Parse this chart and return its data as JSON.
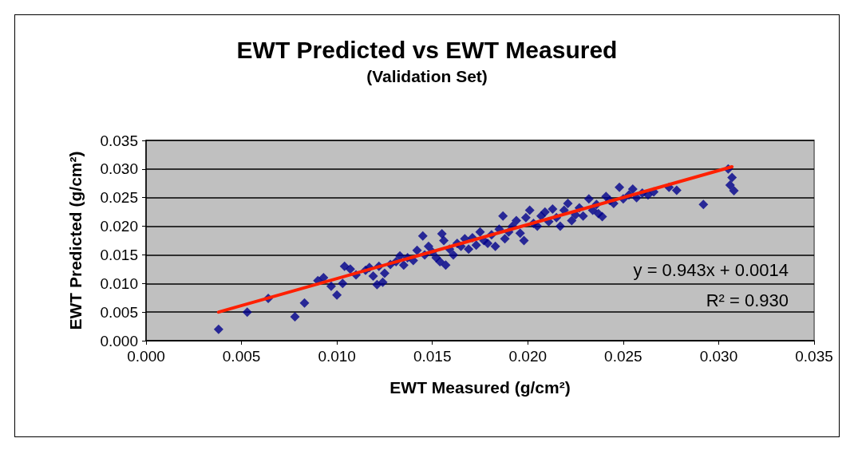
{
  "chart_data": {
    "type": "scatter",
    "title": "EWT Predicted vs EWT Measured",
    "subtitle": "(Validation Set)",
    "xlabel": "EWT Measured (g/cm²)",
    "ylabel": "EWT Predicted (g/cm²)",
    "annotations": [
      "y = 0.943x + 0.0014",
      "R² = 0.930"
    ],
    "xlim": [
      0,
      0.035
    ],
    "ylim": [
      0,
      0.035
    ],
    "xticks": [
      {
        "value": 0,
        "label": "0.000"
      },
      {
        "value": 0.005,
        "label": "0.005"
      },
      {
        "value": 0.01,
        "label": "0.010"
      },
      {
        "value": 0.015,
        "label": "0.015"
      },
      {
        "value": 0.02,
        "label": "0.020"
      },
      {
        "value": 0.025,
        "label": "0.025"
      },
      {
        "value": 0.03,
        "label": "0.030"
      },
      {
        "value": 0.035,
        "label": "0.035"
      }
    ],
    "yticks": [
      {
        "value": 0,
        "label": "0.000"
      },
      {
        "value": 0.005,
        "label": "0.005"
      },
      {
        "value": 0.01,
        "label": "0.010"
      },
      {
        "value": 0.015,
        "label": "0.015"
      },
      {
        "value": 0.02,
        "label": "0.020"
      },
      {
        "value": 0.025,
        "label": "0.025"
      },
      {
        "value": 0.03,
        "label": "0.030"
      },
      {
        "value": 0.035,
        "label": "0.035"
      }
    ],
    "grid": "y",
    "series": [
      {
        "color": "#00008b",
        "marker": "diamond",
        "x": [
          0.0038,
          0.0053,
          0.0064,
          0.0078,
          0.0083,
          0.009,
          0.0093,
          0.0097,
          0.01,
          0.0103,
          0.0104,
          0.0107,
          0.011,
          0.0115,
          0.0117,
          0.0119,
          0.0121,
          0.0122,
          0.0124,
          0.0125,
          0.0128,
          0.0131,
          0.0133,
          0.0135,
          0.0137,
          0.014,
          0.0142,
          0.0145,
          0.0146,
          0.0148,
          0.015,
          0.0152,
          0.0154,
          0.0155,
          0.0156,
          0.0157,
          0.0159,
          0.0161,
          0.0163,
          0.0165,
          0.0167,
          0.0169,
          0.0171,
          0.0173,
          0.0175,
          0.0177,
          0.0179,
          0.0181,
          0.0183,
          0.0185,
          0.0187,
          0.0188,
          0.019,
          0.0192,
          0.0194,
          0.0196,
          0.0198,
          0.0199,
          0.0201,
          0.0203,
          0.0205,
          0.0207,
          0.0209,
          0.0211,
          0.0213,
          0.0215,
          0.0217,
          0.0219,
          0.0221,
          0.0223,
          0.0225,
          0.0227,
          0.0229,
          0.0232,
          0.0234,
          0.0236,
          0.0237,
          0.0239,
          0.0241,
          0.0243,
          0.0245,
          0.0248,
          0.025,
          0.0253,
          0.0255,
          0.0257,
          0.026,
          0.0263,
          0.0266,
          0.0274,
          0.0278,
          0.0292,
          0.0305,
          0.0306,
          0.0307,
          0.0308
        ],
        "values": [
          0.002,
          0.005,
          0.0074,
          0.0042,
          0.0066,
          0.0105,
          0.011,
          0.0095,
          0.008,
          0.01,
          0.013,
          0.0125,
          0.0115,
          0.0123,
          0.0128,
          0.0113,
          0.0098,
          0.013,
          0.0102,
          0.0118,
          0.0133,
          0.0138,
          0.0148,
          0.0132,
          0.0145,
          0.014,
          0.0158,
          0.0183,
          0.015,
          0.0165,
          0.0155,
          0.0145,
          0.0138,
          0.0187,
          0.0175,
          0.0132,
          0.016,
          0.015,
          0.017,
          0.0165,
          0.0178,
          0.016,
          0.018,
          0.0167,
          0.019,
          0.0175,
          0.017,
          0.0185,
          0.0165,
          0.0195,
          0.0218,
          0.0178,
          0.019,
          0.02,
          0.021,
          0.0188,
          0.0175,
          0.0215,
          0.0228,
          0.0205,
          0.02,
          0.0218,
          0.0225,
          0.0208,
          0.023,
          0.0215,
          0.02,
          0.0228,
          0.024,
          0.021,
          0.022,
          0.0232,
          0.0218,
          0.0248,
          0.0228,
          0.0238,
          0.0222,
          0.0217,
          0.0252,
          0.0245,
          0.024,
          0.0268,
          0.0248,
          0.0255,
          0.0265,
          0.025,
          0.0258,
          0.0255,
          0.026,
          0.0268,
          0.0263,
          0.0238,
          0.03,
          0.0272,
          0.0285,
          0.0262
        ]
      },
      {
        "type": "line",
        "color": "#ff2000",
        "marker": "none",
        "line_style": "solid",
        "x": [
          0.0038,
          0.0307
        ],
        "values": [
          0.005,
          0.0304
        ]
      }
    ]
  }
}
